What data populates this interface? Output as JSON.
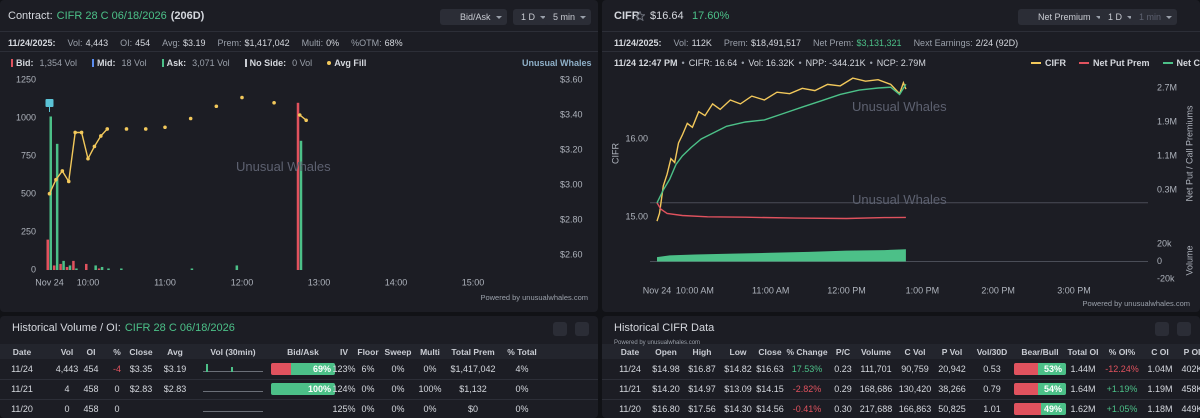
{
  "left_panel": {
    "title_label": "Contract:",
    "contract": "CIFR 28 C 06/18/2026",
    "dte": "(206D)",
    "controls": [
      "Bid/Ask",
      "1 D",
      "5 min"
    ],
    "date": "11/24/2025:",
    "stats": [
      [
        "Vol:",
        "4,443"
      ],
      [
        "OI:",
        "454"
      ],
      [
        "Avg:",
        "$3.19"
      ],
      [
        "Prem:",
        "$1,417,042"
      ],
      [
        "Multi:",
        "0%"
      ],
      [
        "%OTM:",
        "68%"
      ]
    ],
    "legend": [
      {
        "label": "Bid:",
        "value": "1,354 Vol",
        "color": "#e0525e"
      },
      {
        "label": "Mid:",
        "value": "18 Vol",
        "color": "#5b8def"
      },
      {
        "label": "Ask:",
        "value": "3,071 Vol",
        "color": "#4cc088"
      },
      {
        "label": "No Side:",
        "value": "0 Vol",
        "color": "#c9ccd3"
      },
      {
        "label": "Avg Fill",
        "color": "#f2c85b"
      }
    ],
    "brand": "Unusual Whales",
    "watermark": "Unusual Whales",
    "footer": "Powered by unusualwhales.com",
    "chart": {
      "type": "bar",
      "x": [
        570,
        575,
        580,
        585,
        590,
        600,
        605,
        610,
        615,
        625,
        680,
        715,
        765
      ],
      "series": [
        {
          "color": "#e0525e",
          "values": [
            200,
            30,
            40,
            20,
            60,
            40,
            0,
            10,
            0,
            0,
            0,
            0,
            1100
          ]
        },
        {
          "color": "#4cc088",
          "values": [
            1010,
            830,
            60,
            30,
            10,
            0,
            30,
            20,
            10,
            10,
            10,
            30,
            850
          ]
        }
      ],
      "avg_fill": {
        "type": "line",
        "color": "#f2c85b",
        "axis": "y2",
        "x": [
          570,
          575,
          580,
          585,
          590,
          595,
          600,
          605,
          610,
          615,
          630,
          645,
          660,
          680,
          700,
          720,
          745,
          765,
          770
        ],
        "values": [
          2.95,
          3.03,
          3.08,
          3.02,
          3.3,
          3.3,
          3.15,
          3.22,
          3.28,
          3.32,
          3.32,
          3.32,
          3.33,
          3.38,
          3.45,
          3.5,
          3.47,
          3.4,
          3.37
        ]
      },
      "xlim": [
        562.6,
        956.1
      ],
      "xticks": [
        {
          "value": 570,
          "label": "Nov 24"
        },
        {
          "value": 600,
          "label": "10:00"
        },
        {
          "value": 660,
          "label": "11:00"
        },
        {
          "value": 720,
          "label": "12:00"
        },
        {
          "value": 780,
          "label": "13:00"
        },
        {
          "value": 840,
          "label": "14:00"
        },
        {
          "value": 900,
          "label": "15:00"
        }
      ],
      "ylim": [
        0,
        1250
      ],
      "yticks": [
        0,
        250,
        500,
        750,
        1000,
        1250
      ],
      "y2lim": [
        2.514,
        3.6
      ],
      "y2ticks": [
        {
          "value": 2.6,
          "label": "$2.60"
        },
        {
          "value": 2.8,
          "label": "$2.80"
        },
        {
          "value": 3.0,
          "label": "$3.00"
        },
        {
          "value": 3.2,
          "label": "$3.20"
        },
        {
          "value": 3.4,
          "label": "$3.40"
        },
        {
          "value": 3.6,
          "label": "$3.60"
        }
      ]
    }
  },
  "right_panel": {
    "ticker": "CIFR",
    "price": "$16.64",
    "change": "17.60%",
    "controls": [
      "Net Premium",
      "1 D",
      "1 min"
    ],
    "date": "11/24/2025:",
    "stats": [
      [
        "Vol:",
        "112K"
      ],
      [
        "Prem:",
        "$18,491,517"
      ],
      [
        "Net Prem:",
        "$3,131,321"
      ],
      [
        "Next Earnings:",
        "2/24 (92D)"
      ]
    ],
    "info": [
      "11/24 12:47 PM",
      "CIFR: 16.64",
      "Vol: 16.32K",
      "NPP: -344.21K",
      "NCP: 2.79M"
    ],
    "separator": "•",
    "watermark": "Unusual Whales",
    "footer": "Powered by unusualwhales.com",
    "chart": {
      "type": "line",
      "ylabel": "CIFR",
      "y2label": "Net Put / Call Premiums",
      "series": [
        {
          "name": "CIFR",
          "color": "#f2c85b",
          "x": [
            570,
            572,
            575,
            578,
            581,
            584,
            587,
            590,
            594,
            598,
            603,
            608,
            614,
            620,
            628,
            636,
            645,
            655,
            665,
            675,
            685,
            695,
            705,
            715,
            725,
            735,
            745,
            755,
            762,
            765,
            767
          ],
          "values": [
            14.95,
            15.05,
            15.4,
            15.55,
            15.75,
            15.7,
            15.95,
            16.05,
            16.2,
            16.15,
            16.35,
            16.3,
            16.45,
            16.38,
            16.5,
            16.45,
            16.55,
            16.5,
            16.6,
            16.58,
            16.65,
            16.62,
            16.7,
            16.68,
            16.78,
            16.74,
            16.76,
            16.7,
            16.58,
            16.72,
            16.64
          ]
        },
        {
          "name": "Net Put Prem",
          "color": "#e0525e",
          "axis": "y2",
          "x": [
            570,
            573,
            578,
            590,
            610,
            640,
            680,
            720,
            750,
            767
          ],
          "values": [
            0,
            -0.15,
            -0.25,
            -0.3,
            -0.33,
            -0.34,
            -0.36,
            -0.37,
            -0.35,
            -0.344
          ]
        },
        {
          "name": "Net Call Prem",
          "color": "#4cc088",
          "axis": "y2",
          "x": [
            570,
            575,
            580,
            585,
            590,
            597,
            605,
            615,
            625,
            640,
            655,
            670,
            685,
            700,
            715,
            730,
            745,
            755,
            762,
            767
          ],
          "values": [
            0,
            0.3,
            0.55,
            0.9,
            1.1,
            1.3,
            1.5,
            1.65,
            1.8,
            1.9,
            1.95,
            2.1,
            2.25,
            2.4,
            2.55,
            2.65,
            2.7,
            2.72,
            2.55,
            2.79
          ]
        }
      ],
      "xlim": [
        564.46,
        958.6
      ],
      "xticks": [
        {
          "value": 570,
          "label": "Nov 24"
        },
        {
          "value": 600,
          "label": "10:00 AM"
        },
        {
          "value": 660,
          "label": "11:00 AM"
        },
        {
          "value": 720,
          "label": "12:00 PM"
        },
        {
          "value": 780,
          "label": "1:00 PM"
        },
        {
          "value": 840,
          "label": "2:00 PM"
        },
        {
          "value": 900,
          "label": "3:00 PM"
        }
      ],
      "ylim": [
        14.81,
        16.82
      ],
      "yticks": [
        {
          "value": 15,
          "label": "15.00"
        },
        {
          "value": 16,
          "label": "16.00"
        }
      ],
      "y2lim": [
        -0.688,
        3.006
      ],
      "y2ticks": [
        {
          "value": 0.3,
          "label": "0.3M"
        },
        {
          "value": 1.1,
          "label": "1.1M"
        },
        {
          "value": 1.9,
          "label": "1.9M"
        },
        {
          "value": 2.7,
          "label": "2.7M"
        }
      ],
      "volume": {
        "type": "area",
        "ylabel": "Volume",
        "color": "#4cc088",
        "x": [
          570,
          580,
          600,
          630,
          660,
          690,
          720,
          750,
          767
        ],
        "values": [
          5,
          7,
          8,
          9,
          10,
          11,
          12.5,
          13,
          14
        ],
        "ylim": [
          -24.6,
          26.9
        ],
        "yticks": [
          {
            "value": 20,
            "label": "20k"
          },
          0,
          {
            "value": -20,
            "label": "-20k"
          }
        ]
      }
    }
  },
  "bottom_left": {
    "title": "Historical Volume / OI:",
    "contract": "CIFR 28 C 06/18/2026",
    "table": {
      "columns": [
        "Date",
        "Vol",
        "OI",
        "%",
        "Close",
        "Avg",
        "Vol (30min)",
        "Bid/Ask",
        "IV",
        "Floor",
        "Sweep",
        "Multi",
        "Total Prem",
        "% Total"
      ],
      "rows": [
        [
          "11/24",
          "4,443",
          "454",
          "-4",
          "$3.35",
          "$3.19",
          null,
          {
            "value": 69,
            "label": "69%"
          },
          "123%",
          "6%",
          "0%",
          "0%",
          "$1,417,042",
          "4%"
        ],
        [
          "11/21",
          "4",
          "458",
          "0",
          "$2.83",
          "$2.83",
          null,
          {
            "value": 100,
            "label": "100%"
          },
          "124%",
          "0%",
          "0%",
          "100%",
          "$1,132",
          "0%"
        ],
        [
          "11/20",
          "0",
          "458",
          "0",
          null,
          null,
          null,
          null,
          "125%",
          "0%",
          "0%",
          "0%",
          "$0",
          "0%"
        ]
      ]
    }
  },
  "bottom_right": {
    "title": "Historical CIFR Data",
    "footer": "Powered by unusualwhales.com",
    "table": {
      "columns": [
        "Date",
        "Open",
        "High",
        "Low",
        "Close",
        "% Change",
        "P/C",
        "Volume",
        "C Vol",
        "P Vol",
        "Vol/30D",
        "Bear/Bull",
        "Total OI",
        "% OI%",
        "C OI",
        "P OI"
      ],
      "rows": [
        [
          "11/24",
          "$14.98",
          "$16.87",
          "$14.82",
          "$16.63",
          "17.53%",
          "0.23",
          "111,701",
          "90,759",
          "20,942",
          "0.53",
          {
            "value": 53,
            "label": "53%"
          },
          "1.44M",
          "-12.24%",
          "1.04M",
          "402K"
        ],
        [
          "11/21",
          "$14.20",
          "$14.97",
          "$13.09",
          "$14.15",
          "-2.82%",
          "0.29",
          "168,686",
          "130,420",
          "38,266",
          "0.79",
          {
            "value": 54,
            "label": "54%"
          },
          "1.64M",
          "+1.19%",
          "1.19M",
          "458K"
        ],
        [
          "11/20",
          "$16.80",
          "$17.56",
          "$14.30",
          "$14.56",
          "-0.41%",
          "0.30",
          "217,688",
          "166,863",
          "50,825",
          "1.01",
          {
            "value": 49,
            "label": "49%"
          },
          "1.62M",
          "+1.05%",
          "1.18M",
          "449K"
        ]
      ]
    }
  }
}
